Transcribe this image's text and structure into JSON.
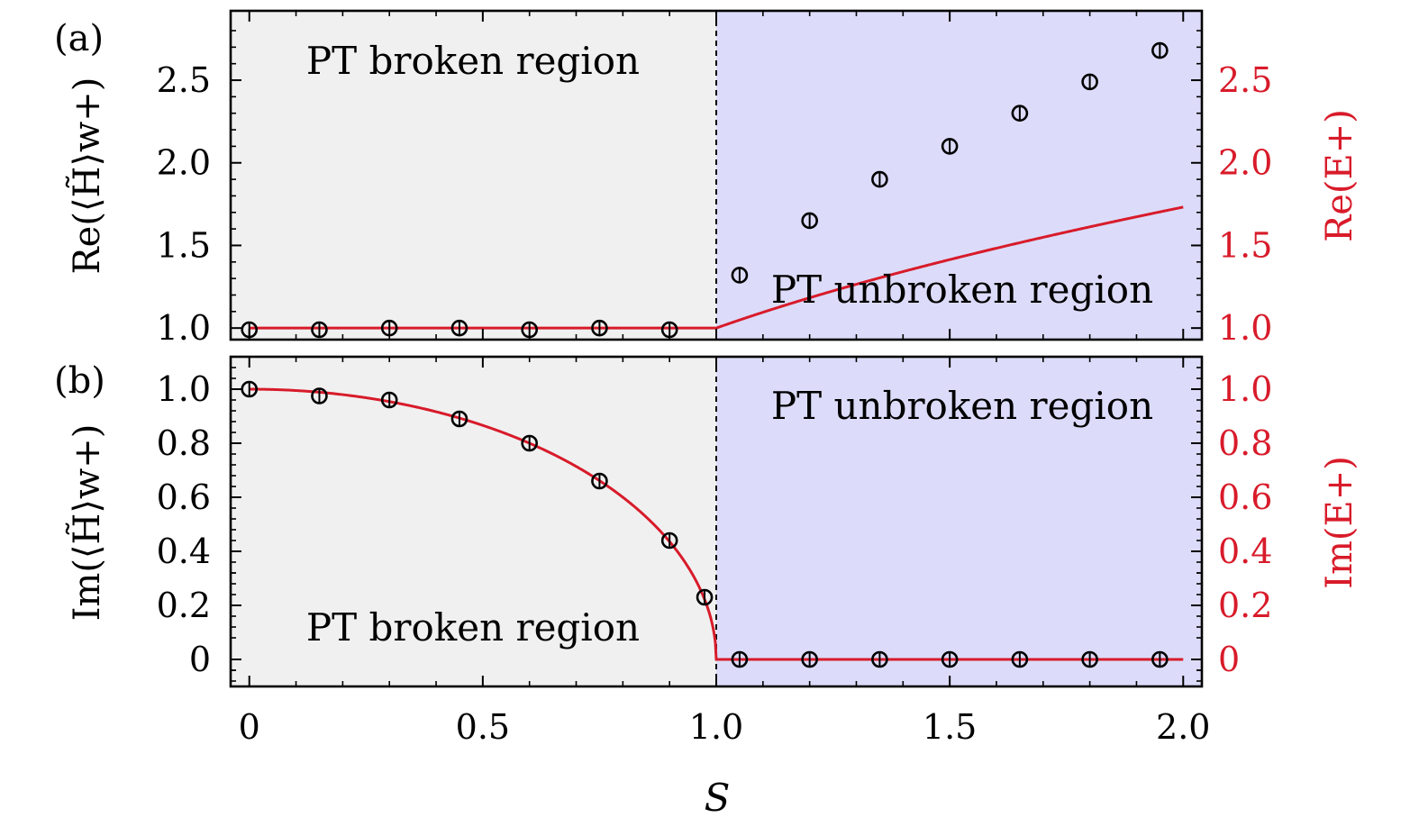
{
  "chart_data": [
    {
      "type": "scatter",
      "panel_label": "(a)",
      "xlim": [
        -0.04,
        2.04
      ],
      "ylim": [
        0.93,
        2.92
      ],
      "yticks": [
        1.0,
        1.5,
        2.0,
        2.5
      ],
      "ytick_labels": [
        "1.0",
        "1.5",
        "2.0",
        "2.5"
      ],
      "ylabel_left": "Re(⟨H̃⟩w+)",
      "ylabel_right": "Re(E+)",
      "regions": [
        {
          "label": "PT broken region",
          "from": -0.04,
          "to": 1.0,
          "color": "#f0f0f0"
        },
        {
          "label": "PT unbroken region",
          "from": 1.0,
          "to": 2.04,
          "color": "#dcdcfa"
        }
      ],
      "critical_line_x": 1.0,
      "series": [
        {
          "type": "points",
          "x": [
            0,
            0.15,
            0.3,
            0.45,
            0.6,
            0.75,
            0.9,
            1.05,
            1.2,
            1.35,
            1.5,
            1.65,
            1.8,
            1.95
          ],
          "y": [
            0.99,
            0.99,
            1.0,
            1.0,
            0.99,
            1.0,
            0.99,
            1.32,
            1.65,
            1.9,
            2.1,
            2.3,
            2.49,
            2.68
          ],
          "color": "#000000"
        },
        {
          "type": "theory",
          "curve": "Re(E+)",
          "color": "#d81b2a"
        }
      ]
    },
    {
      "type": "scatter",
      "panel_label": "(b)",
      "xlim": [
        -0.04,
        2.04
      ],
      "ylim": [
        -0.1,
        1.12
      ],
      "yticks": [
        0,
        0.2,
        0.4,
        0.6,
        0.8,
        1.0
      ],
      "ytick_labels": [
        "0",
        "0.2",
        "0.4",
        "0.6",
        "0.8",
        "1.0"
      ],
      "ylabel_left": "Im(⟨H̃⟩w+)",
      "ylabel_right": "Im(E+)",
      "regions": [
        {
          "label": "PT broken region",
          "from": -0.04,
          "to": 1.0,
          "color": "#f0f0f0"
        },
        {
          "label": "PT unbroken region",
          "from": 1.0,
          "to": 2.04,
          "color": "#dcdcfa"
        }
      ],
      "critical_line_x": 1.0,
      "series": [
        {
          "type": "points",
          "x": [
            0,
            0.15,
            0.3,
            0.45,
            0.6,
            0.75,
            0.9,
            0.975,
            1.05,
            1.2,
            1.35,
            1.5,
            1.65,
            1.8,
            1.95
          ],
          "y": [
            1.0,
            0.975,
            0.96,
            0.89,
            0.8,
            0.66,
            0.44,
            0.23,
            0,
            0,
            0,
            0,
            0,
            0,
            0
          ],
          "color": "#000000"
        },
        {
          "type": "theory",
          "curve": "Im(E+)",
          "color": "#d81b2a"
        }
      ]
    }
  ],
  "x_axis": {
    "title": "S",
    "ticks": [
      0,
      0.5,
      1.0,
      1.5,
      2.0
    ],
    "tick_labels": [
      "0",
      "0.5",
      "1.0",
      "1.5",
      "2.0"
    ]
  },
  "colors": {
    "theory": "#d81b2a",
    "points": "#000000",
    "right_axis": "#d81b2a",
    "broken_bg": "#f0f0f0",
    "unbroken_bg": "#dcdcfa"
  }
}
